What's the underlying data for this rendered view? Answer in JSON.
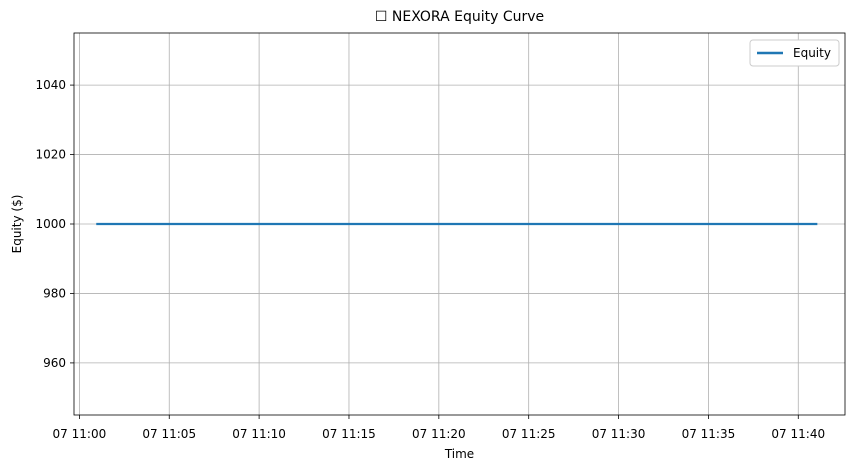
{
  "chart_data": {
    "type": "line",
    "title": "☐ NEXORA Equity Curve",
    "xlabel": "Time",
    "ylabel": "Equity ($)",
    "x_ticks": [
      "07 11:00",
      "07 11:05",
      "07 11:10",
      "07 11:15",
      "07 11:20",
      "07 11:25",
      "07 11:30",
      "07 11:35",
      "07 11:40"
    ],
    "y_ticks": [
      "960",
      "980",
      "1000",
      "1020",
      "1040"
    ],
    "xlim": [
      "07 11:00",
      "07 11:43"
    ],
    "ylim": [
      945,
      1055
    ],
    "grid": true,
    "legend_position": "top-right",
    "series": [
      {
        "name": "Equity",
        "color": "#1f77b4",
        "x": [
          "07 11:01",
          "07 11:41"
        ],
        "values": [
          1000,
          1000
        ]
      }
    ]
  }
}
